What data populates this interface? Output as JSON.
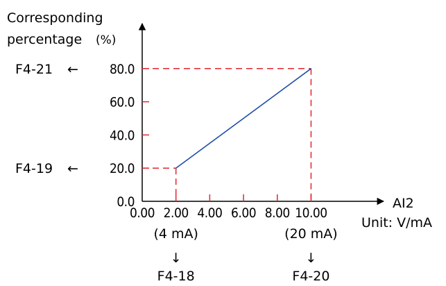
{
  "chart_data": {
    "type": "line",
    "ylabel_line1": "Corresponding",
    "ylabel_line2": "percentage",
    "ylabel_unit": "(%)",
    "xlabel": "AI2",
    "xunit": "Unit: V/mA",
    "x_ticks": [
      "0.00",
      "2.00",
      "4.00",
      "6.00",
      "8.00",
      "10.00"
    ],
    "x_tick_values": [
      0,
      2,
      4,
      6,
      8,
      10
    ],
    "y_ticks": [
      "0.0",
      "20.0",
      "40.0",
      "60.0",
      "80.0"
    ],
    "y_tick_values": [
      0,
      20,
      40,
      60,
      80
    ],
    "xlim": [
      0,
      12.2
    ],
    "ylim": [
      0,
      100
    ],
    "series": [
      {
        "x": [
          2,
          10
        ],
        "y": [
          20,
          80
        ],
        "color": "#1f4fa8"
      }
    ],
    "guide_color": "#e0262d",
    "annotations": {
      "x_low_sub": "(4 mA)",
      "x_high_sub": "(20 mA)",
      "x_low_param": "F4-18",
      "x_high_param": "F4-20",
      "y_low_param": "F4-19",
      "y_high_param": "F4-21",
      "down_arrow": "↓",
      "left_arrow": "←"
    }
  }
}
